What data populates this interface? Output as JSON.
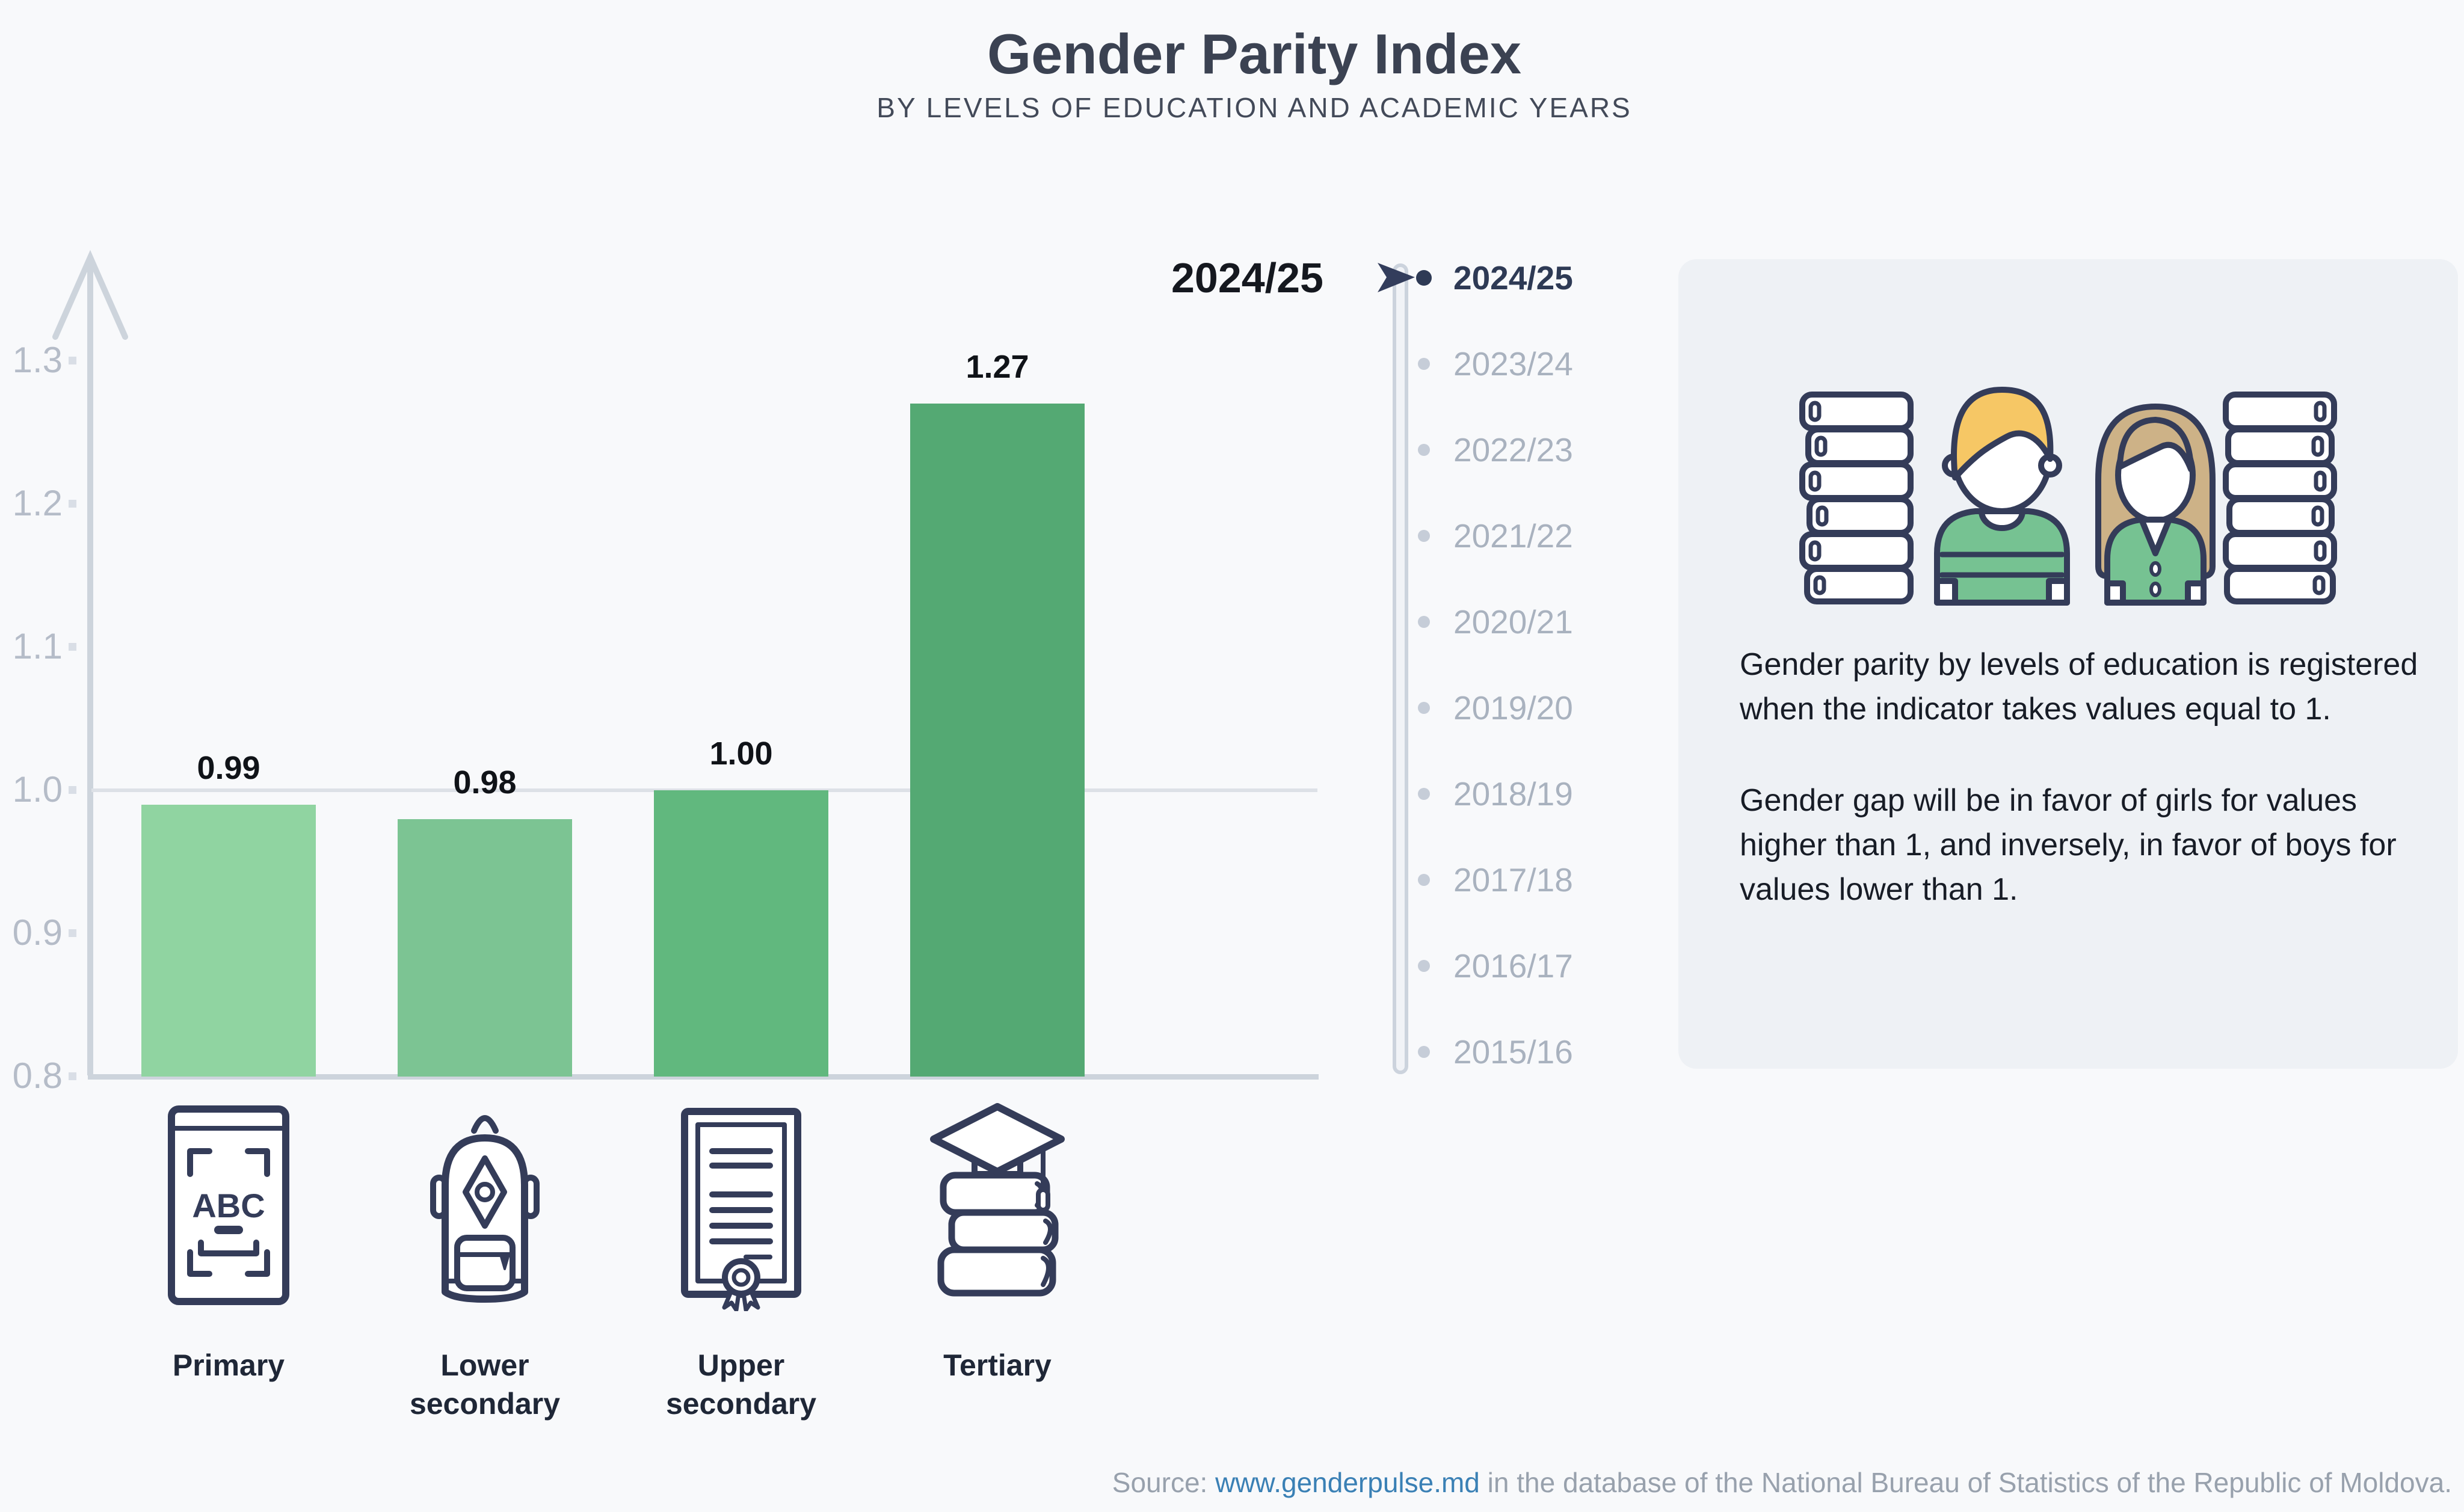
{
  "page": {
    "title": "Gender Parity Index",
    "subtitle": "BY LEVELS OF EDUCATION AND ACADEMIC YEARS",
    "background": "#f8f9fb"
  },
  "chart_data": {
    "type": "bar",
    "title": "Gender Parity Index",
    "subtitle": "BY LEVELS OF EDUCATION AND ACADEMIC YEARS",
    "selected_year": "2024/25",
    "categories": [
      "Primary",
      "Lower secondary",
      "Upper secondary",
      "Tertiary"
    ],
    "values": [
      0.99,
      0.98,
      1.0,
      1.27
    ],
    "value_labels": [
      "0.99",
      "0.98",
      "1.00",
      "1.27"
    ],
    "bar_colors": [
      "#90d4a1",
      "#7cc493",
      "#61b87e",
      "#54a973"
    ],
    "xlabel": "",
    "ylabel": "",
    "yticks": [
      0.8,
      0.9,
      1.0,
      1.1,
      1.2,
      1.3
    ],
    "ylim": [
      0.8,
      1.35
    ],
    "baseline_value": 0.8,
    "reference_line": 1.0,
    "grid": false,
    "legend_position": "none",
    "category_icons": [
      "abc-book-icon",
      "backpack-icon",
      "certificate-icon",
      "graduation-books-icon"
    ]
  },
  "timeline": {
    "years": [
      "2024/25",
      "2023/24",
      "2022/23",
      "2021/22",
      "2020/21",
      "2019/20",
      "2018/19",
      "2017/18",
      "2016/17",
      "2015/16"
    ],
    "active_index": 0,
    "active_color": "#2e3a55",
    "inactive_color": "#a9b2bf"
  },
  "icons": {
    "abc_label": "ABC"
  },
  "info_panel": {
    "paragraph1": "Gender parity by levels of education is registered when the indicator takes values equal to 1.",
    "paragraph2": "Gender gap will be in favor of girls for values higher than 1, and inversely, in favor of boys for values lower than 1."
  },
  "source": {
    "prefix": "Source: ",
    "link": "www.genderpulse.md",
    "suffix": " in the database of the National Bureau of Statistics of the Republic of Moldova."
  },
  "colors": {
    "navy": "#343c59",
    "axis_gray": "#cdd4dc",
    "grid_gray": "#dde1e7",
    "tick_label_gray": "#b5bcc8",
    "link_blue": "#3a80b5",
    "boy_hair": "#f6c765",
    "girl_hair": "#cdb287",
    "shirt_green": "#76c292",
    "info_bg": "#eef1f5"
  }
}
